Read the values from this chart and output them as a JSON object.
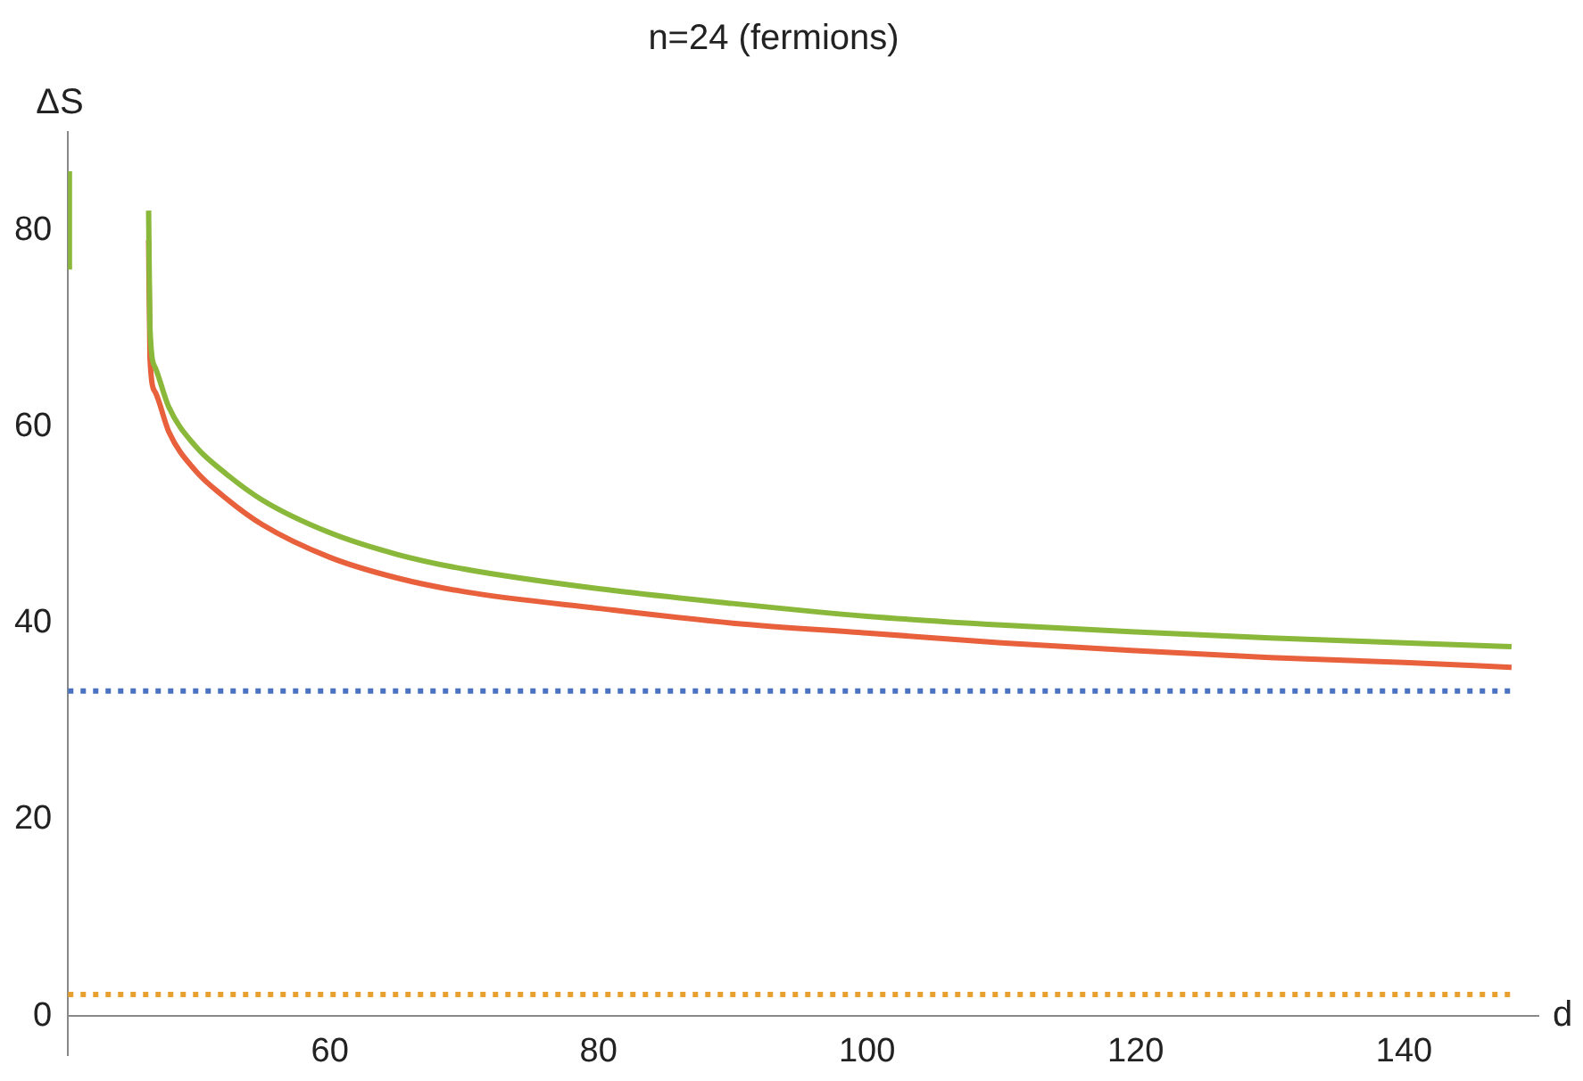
{
  "chart_data": {
    "type": "line",
    "title": "n=24 (fermions)",
    "xlabel": "d",
    "ylabel": "ΔS",
    "xlim": [
      40.5,
      150
    ],
    "ylim": [
      -4,
      90
    ],
    "xticks": [
      60,
      80,
      100,
      120,
      140
    ],
    "yticks": [
      0,
      20,
      40,
      60,
      80
    ],
    "grid": false,
    "legend": false,
    "marker": "none",
    "line_style": "solid",
    "series": [
      {
        "color": "#8ab83a",
        "x": [
          46.5,
          46.6,
          47,
          48,
          50,
          52,
          55,
          60,
          65,
          70,
          80,
          90,
          100,
          110,
          120,
          130,
          140,
          148
        ],
        "values": [
          82,
          70,
          66,
          62,
          58,
          55.5,
          52.5,
          49.2,
          47,
          45.5,
          43.5,
          42,
          40.7,
          39.8,
          39.1,
          38.5,
          38,
          37.6
        ]
      },
      {
        "color": "#e8603c",
        "x": [
          46.5,
          46.6,
          47,
          48,
          50,
          52,
          55,
          60,
          65,
          70,
          80,
          90,
          100,
          110,
          120,
          130,
          140,
          148
        ],
        "values": [
          79,
          67,
          63.5,
          59.5,
          55.5,
          53,
          50,
          46.7,
          44.6,
          43.2,
          41.5,
          40,
          39,
          38,
          37.2,
          36.5,
          36,
          35.5
        ]
      },
      {
        "color": "#8ab83a",
        "x": [
          40.6,
          40.6
        ],
        "values": [
          86,
          76
        ]
      }
    ],
    "ref_lines": [
      {
        "axis": "y",
        "value": 33.1,
        "color": "#4a72c0",
        "line_style": "dotted"
      },
      {
        "axis": "y",
        "value": 2.2,
        "color": "#e8a030",
        "line_style": "dotted"
      }
    ]
  }
}
